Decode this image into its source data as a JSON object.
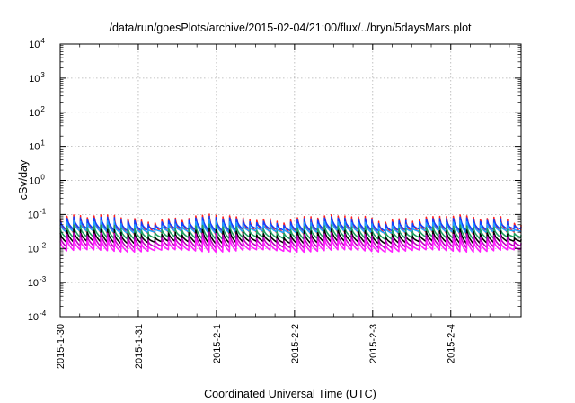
{
  "chart_data": {
    "type": "line",
    "title": "/data/run/goesPlots/archive/2015-02-04/21:00/flux/../bryn/5daysMars.plot",
    "xlabel": "Coordinated Universal Time (UTC)",
    "ylabel": "cSv/day",
    "yscale": "log",
    "ylim": [
      0.0001,
      10000
    ],
    "ytick_base": "10",
    "yticks_exp": [
      "-4",
      "-3",
      "-2",
      "-1",
      "0",
      "1",
      "2",
      "3",
      "4"
    ],
    "xlim_days": [
      0,
      5.9
    ],
    "xticks": [
      {
        "label": "2015-1-30",
        "day": 0
      },
      {
        "label": "2015-1-31",
        "day": 1
      },
      {
        "label": "2015-2-1",
        "day": 2
      },
      {
        "label": "2015-2-2",
        "day": 3
      },
      {
        "label": "2015-2-3",
        "day": 4
      },
      {
        "label": "2015-2-4",
        "day": 5
      }
    ],
    "grid": true,
    "legend": "none",
    "sawtooth_cycles": 68,
    "series": [
      {
        "color": "#ff2020",
        "peak": 0.075,
        "trough": 0.028
      },
      {
        "color": "#1040ff",
        "peak": 0.065,
        "trough": 0.035
      },
      {
        "color": "#20a0ff",
        "peak": 0.05,
        "trough": 0.03
      },
      {
        "color": "#20a060",
        "peak": 0.038,
        "trough": 0.02
      },
      {
        "color": "#000000",
        "peak": 0.028,
        "trough": 0.015
      },
      {
        "color": "#c000c0",
        "peak": 0.022,
        "trough": 0.011
      },
      {
        "color": "#ff20ff",
        "peak": 0.016,
        "trough": 0.0085
      }
    ]
  }
}
